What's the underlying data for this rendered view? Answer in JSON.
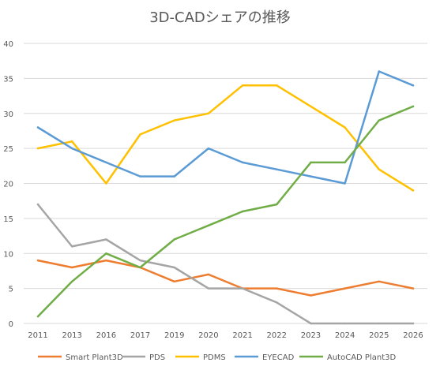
{
  "chart_data": {
    "type": "line",
    "title": "3D-CADシェアの推移",
    "xlabel": "",
    "ylabel": "",
    "categories": [
      "2011",
      "2013",
      "2016",
      "2017",
      "2019",
      "2020",
      "2021",
      "2022",
      "2023",
      "2024",
      "2025",
      "2026"
    ],
    "ylim": [
      0,
      40
    ],
    "y_ticks": [
      "0",
      "5",
      "10",
      "15",
      "20",
      "25",
      "30",
      "35",
      "40"
    ],
    "grid": true,
    "legend_position": "bottom",
    "series": [
      {
        "name": "Smart Plant3D",
        "color": "#ed7d31",
        "values": [
          9,
          8,
          9,
          8,
          6,
          7,
          5,
          5,
          4,
          5,
          6,
          5
        ]
      },
      {
        "name": "PDS",
        "color": "#a5a5a5",
        "values": [
          17,
          11,
          12,
          9,
          8,
          5,
          5,
          3,
          0,
          0,
          0,
          0
        ]
      },
      {
        "name": "PDMS",
        "color": "#ffc000",
        "values": [
          25,
          26,
          20,
          27,
          29,
          30,
          34,
          34,
          31,
          28,
          22,
          19
        ]
      },
      {
        "name": "EYECAD",
        "color": "#5b9bd5",
        "values": [
          28,
          25,
          23,
          21,
          21,
          25,
          23,
          22,
          21,
          20,
          36,
          34
        ]
      },
      {
        "name": "AutoCAD Plant3D",
        "color": "#70ad47",
        "values": [
          1,
          6,
          10,
          8,
          12,
          14,
          16,
          17,
          23,
          23,
          29,
          31
        ]
      }
    ]
  }
}
